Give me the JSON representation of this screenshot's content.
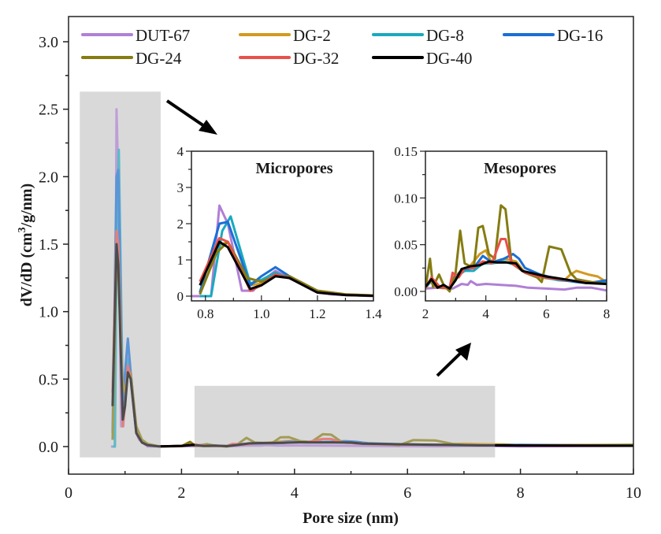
{
  "chart_data": [
    {
      "id": "main",
      "type": "line",
      "xlabel": "Pore size (nm)",
      "ylabel_main": "dV/dD (cm",
      "ylabel_sup": "3",
      "ylabel_tail": "/g/nm)",
      "xlim": [
        0,
        10
      ],
      "ylim": [
        -0.2,
        3.2
      ],
      "xticks": [
        0,
        2,
        4,
        6,
        8,
        10
      ],
      "xtick_labels": [
        "0",
        "2",
        "4",
        "6",
        "8",
        "10"
      ],
      "yticks": [
        0.0,
        0.5,
        1.0,
        1.5,
        2.0,
        2.5,
        3.0
      ],
      "ytick_labels": [
        "0.0",
        "0.5",
        "1.0",
        "1.5",
        "2.0",
        "2.5",
        "3.0"
      ],
      "grid": false,
      "legend_position": "top",
      "highlight_regions": [
        {
          "name": "micropore-region",
          "x": [
            0.2,
            1.63
          ],
          "y": [
            -0.08,
            2.63
          ]
        },
        {
          "name": "mesopore-region",
          "x": [
            2.23,
            7.55
          ],
          "y": [
            -0.08,
            0.45
          ]
        }
      ]
    },
    {
      "id": "micropores",
      "type": "line",
      "title": "Micropores",
      "xlim": [
        0.75,
        1.4
      ],
      "ylim": [
        -0.15,
        4
      ],
      "xticks": [
        0.8,
        1.0,
        1.2,
        1.4
      ],
      "xtick_labels": [
        "0.8",
        "1.0",
        "1.2",
        "1.4"
      ],
      "yticks": [
        0,
        1,
        2,
        3,
        4
      ],
      "ytick_labels": [
        "0",
        "1",
        "2",
        "3",
        "4"
      ]
    },
    {
      "id": "mesopores",
      "type": "line",
      "title": "Mesopores",
      "xlim": [
        2,
        8
      ],
      "ylim": [
        -0.01,
        0.15
      ],
      "xticks": [
        2,
        4,
        6,
        8
      ],
      "xtick_labels": [
        "2",
        "4",
        "6",
        "8"
      ],
      "yticks": [
        0.0,
        0.05,
        0.1,
        0.15
      ],
      "ytick_labels": [
        "0.00",
        "0.05",
        "0.10",
        "0.15"
      ]
    }
  ],
  "series": [
    {
      "name": "DUT-67",
      "color": "#b07fd6",
      "micro": [
        [
          0.75,
          0
        ],
        [
          0.82,
          0
        ],
        [
          0.85,
          2.5
        ],
        [
          0.88,
          2.0
        ],
        [
          0.93,
          0.15
        ],
        [
          0.97,
          0.15
        ],
        [
          1.0,
          0.4
        ],
        [
          1.05,
          0.7
        ],
        [
          1.1,
          0.5
        ],
        [
          1.2,
          0.1
        ],
        [
          1.25,
          0.05
        ],
        [
          1.4,
          0
        ]
      ],
      "meso": [
        [
          2,
          0.003
        ],
        [
          2.4,
          0.004
        ],
        [
          2.9,
          0.003
        ],
        [
          3.2,
          0.008
        ],
        [
          3.4,
          0.007
        ],
        [
          3.5,
          0.011
        ],
        [
          3.7,
          0.007
        ],
        [
          4.0,
          0.008
        ],
        [
          4.5,
          0.007
        ],
        [
          5.0,
          0.006
        ],
        [
          5.4,
          0.004
        ],
        [
          6.0,
          0.003
        ],
        [
          6.6,
          0.002
        ],
        [
          7.0,
          0.004
        ],
        [
          7.5,
          0.004
        ],
        [
          8,
          0.001
        ]
      ]
    },
    {
      "name": "DG-2",
      "color": "#d39a1f",
      "micro": [
        [
          0.78,
          0.05
        ],
        [
          0.85,
          1.4
        ],
        [
          0.88,
          1.5
        ],
        [
          0.96,
          0.3
        ],
        [
          1.0,
          0.35
        ],
        [
          1.05,
          0.6
        ],
        [
          1.1,
          0.5
        ],
        [
          1.2,
          0.15
        ],
        [
          1.3,
          0.05
        ],
        [
          1.4,
          0.02
        ]
      ],
      "meso": [
        [
          2,
          0.003
        ],
        [
          2.15,
          0.01
        ],
        [
          2.4,
          0.004
        ],
        [
          2.8,
          0.003
        ],
        [
          3.1,
          0.02
        ],
        [
          3.4,
          0.024
        ],
        [
          3.8,
          0.04
        ],
        [
          4.0,
          0.044
        ],
        [
          4.2,
          0.03
        ],
        [
          4.6,
          0.035
        ],
        [
          5.0,
          0.032
        ],
        [
          5.3,
          0.02
        ],
        [
          5.8,
          0.015
        ],
        [
          6.3,
          0.013
        ],
        [
          6.6,
          0.012
        ],
        [
          6.8,
          0.018
        ],
        [
          7.0,
          0.022
        ],
        [
          7.4,
          0.018
        ],
        [
          7.7,
          0.016
        ],
        [
          8,
          0.01
        ]
      ]
    },
    {
      "name": "DG-8",
      "color": "#1aa9bf",
      "micro": [
        [
          0.78,
          0
        ],
        [
          0.82,
          0
        ],
        [
          0.86,
          1.8
        ],
        [
          0.89,
          2.2
        ],
        [
          0.96,
          0.35
        ],
        [
          1.0,
          0.45
        ],
        [
          1.05,
          0.65
        ],
        [
          1.1,
          0.5
        ],
        [
          1.2,
          0.1
        ],
        [
          1.3,
          0.03
        ],
        [
          1.4,
          0.01
        ]
      ],
      "meso": [
        [
          2,
          0.004
        ],
        [
          2.2,
          0.012
        ],
        [
          2.5,
          0.004
        ],
        [
          2.8,
          0.004
        ],
        [
          3.0,
          0.015
        ],
        [
          3.3,
          0.022
        ],
        [
          3.6,
          0.022
        ],
        [
          3.9,
          0.03
        ],
        [
          4.2,
          0.03
        ],
        [
          4.6,
          0.032
        ],
        [
          5.0,
          0.028
        ],
        [
          5.3,
          0.02
        ],
        [
          5.8,
          0.016
        ],
        [
          6.4,
          0.012
        ],
        [
          6.8,
          0.011
        ],
        [
          7.3,
          0.009
        ],
        [
          8,
          0.01
        ]
      ]
    },
    {
      "name": "DG-16",
      "color": "#1a6fd6",
      "micro": [
        [
          0.78,
          0.1
        ],
        [
          0.85,
          2.0
        ],
        [
          0.88,
          2.05
        ],
        [
          0.96,
          0.3
        ],
        [
          1.0,
          0.55
        ],
        [
          1.05,
          0.8
        ],
        [
          1.1,
          0.55
        ],
        [
          1.2,
          0.12
        ],
        [
          1.3,
          0.04
        ],
        [
          1.4,
          0.01
        ]
      ],
      "meso": [
        [
          2,
          0.004
        ],
        [
          2.2,
          0.013
        ],
        [
          2.5,
          0.004
        ],
        [
          2.8,
          0.004
        ],
        [
          3.0,
          0.016
        ],
        [
          3.3,
          0.024
        ],
        [
          3.6,
          0.025
        ],
        [
          3.9,
          0.038
        ],
        [
          4.2,
          0.031
        ],
        [
          4.6,
          0.035
        ],
        [
          4.9,
          0.04
        ],
        [
          5.1,
          0.035
        ],
        [
          5.3,
          0.025
        ],
        [
          5.8,
          0.018
        ],
        [
          6.4,
          0.013
        ],
        [
          7.0,
          0.01
        ],
        [
          7.4,
          0.009
        ],
        [
          8,
          0.012
        ]
      ]
    },
    {
      "name": "DG-24",
      "color": "#857c12",
      "micro": [
        [
          0.78,
          0.05
        ],
        [
          0.84,
          1.2
        ],
        [
          0.88,
          1.5
        ],
        [
          0.95,
          0.5
        ],
        [
          1.0,
          0.4
        ],
        [
          1.05,
          0.55
        ],
        [
          1.1,
          0.55
        ],
        [
          1.2,
          0.15
        ],
        [
          1.3,
          0.05
        ],
        [
          1.4,
          0.02
        ]
      ],
      "meso": [
        [
          2,
          0.003
        ],
        [
          2.15,
          0.035
        ],
        [
          2.25,
          0.005
        ],
        [
          2.45,
          0.018
        ],
        [
          2.6,
          0.007
        ],
        [
          2.8,
          0.0
        ],
        [
          3.0,
          0.02
        ],
        [
          3.15,
          0.065
        ],
        [
          3.3,
          0.03
        ],
        [
          3.6,
          0.025
        ],
        [
          3.75,
          0.068
        ],
        [
          3.9,
          0.07
        ],
        [
          4.1,
          0.04
        ],
        [
          4.3,
          0.035
        ],
        [
          4.5,
          0.092
        ],
        [
          4.65,
          0.088
        ],
        [
          4.85,
          0.03
        ],
        [
          5.3,
          0.02
        ],
        [
          5.7,
          0.015
        ],
        [
          5.85,
          0.01
        ],
        [
          6.1,
          0.048
        ],
        [
          6.5,
          0.045
        ],
        [
          6.8,
          0.02
        ],
        [
          7.0,
          0.013
        ],
        [
          7.5,
          0.01
        ],
        [
          8,
          0.008
        ]
      ]
    },
    {
      "name": "DG-32",
      "color": "#e8514a",
      "micro": [
        [
          0.78,
          0.4
        ],
        [
          0.85,
          1.6
        ],
        [
          0.88,
          1.5
        ],
        [
          0.96,
          0.15
        ],
        [
          1.0,
          0.3
        ],
        [
          1.05,
          0.6
        ],
        [
          1.1,
          0.5
        ],
        [
          1.2,
          0.1
        ],
        [
          1.3,
          0.03
        ],
        [
          1.4,
          0.01
        ]
      ],
      "meso": [
        [
          2,
          0.004
        ],
        [
          2.2,
          0.015
        ],
        [
          2.5,
          0.004
        ],
        [
          2.8,
          0.004
        ],
        [
          2.9,
          0.02
        ],
        [
          3.1,
          0.015
        ],
        [
          3.3,
          0.025
        ],
        [
          3.6,
          0.025
        ],
        [
          3.9,
          0.032
        ],
        [
          4.2,
          0.03
        ],
        [
          4.5,
          0.056
        ],
        [
          4.65,
          0.056
        ],
        [
          4.85,
          0.03
        ],
        [
          5.1,
          0.025
        ],
        [
          5.3,
          0.02
        ],
        [
          5.8,
          0.016
        ],
        [
          6.4,
          0.013
        ],
        [
          7.0,
          0.011
        ],
        [
          7.4,
          0.009
        ],
        [
          8,
          0.008
        ]
      ]
    },
    {
      "name": "DG-40",
      "color": "#000000",
      "micro": [
        [
          0.78,
          0.3
        ],
        [
          0.85,
          1.5
        ],
        [
          0.88,
          1.35
        ],
        [
          0.96,
          0.2
        ],
        [
          1.0,
          0.3
        ],
        [
          1.05,
          0.55
        ],
        [
          1.1,
          0.5
        ],
        [
          1.2,
          0.1
        ],
        [
          1.3,
          0.03
        ],
        [
          1.4,
          0.01
        ]
      ],
      "meso": [
        [
          2,
          0.005
        ],
        [
          2.2,
          0.013
        ],
        [
          2.4,
          0.004
        ],
        [
          2.6,
          0.007
        ],
        [
          2.8,
          0.003
        ],
        [
          3.0,
          0.012
        ],
        [
          3.2,
          0.024
        ],
        [
          3.5,
          0.027
        ],
        [
          3.8,
          0.028
        ],
        [
          4.1,
          0.032
        ],
        [
          4.4,
          0.031
        ],
        [
          4.7,
          0.031
        ],
        [
          5.0,
          0.03
        ],
        [
          5.2,
          0.022
        ],
        [
          5.6,
          0.019
        ],
        [
          6.0,
          0.016
        ],
        [
          6.4,
          0.014
        ],
        [
          6.8,
          0.012
        ],
        [
          7.3,
          0.009
        ],
        [
          8,
          0.008
        ]
      ]
    }
  ]
}
